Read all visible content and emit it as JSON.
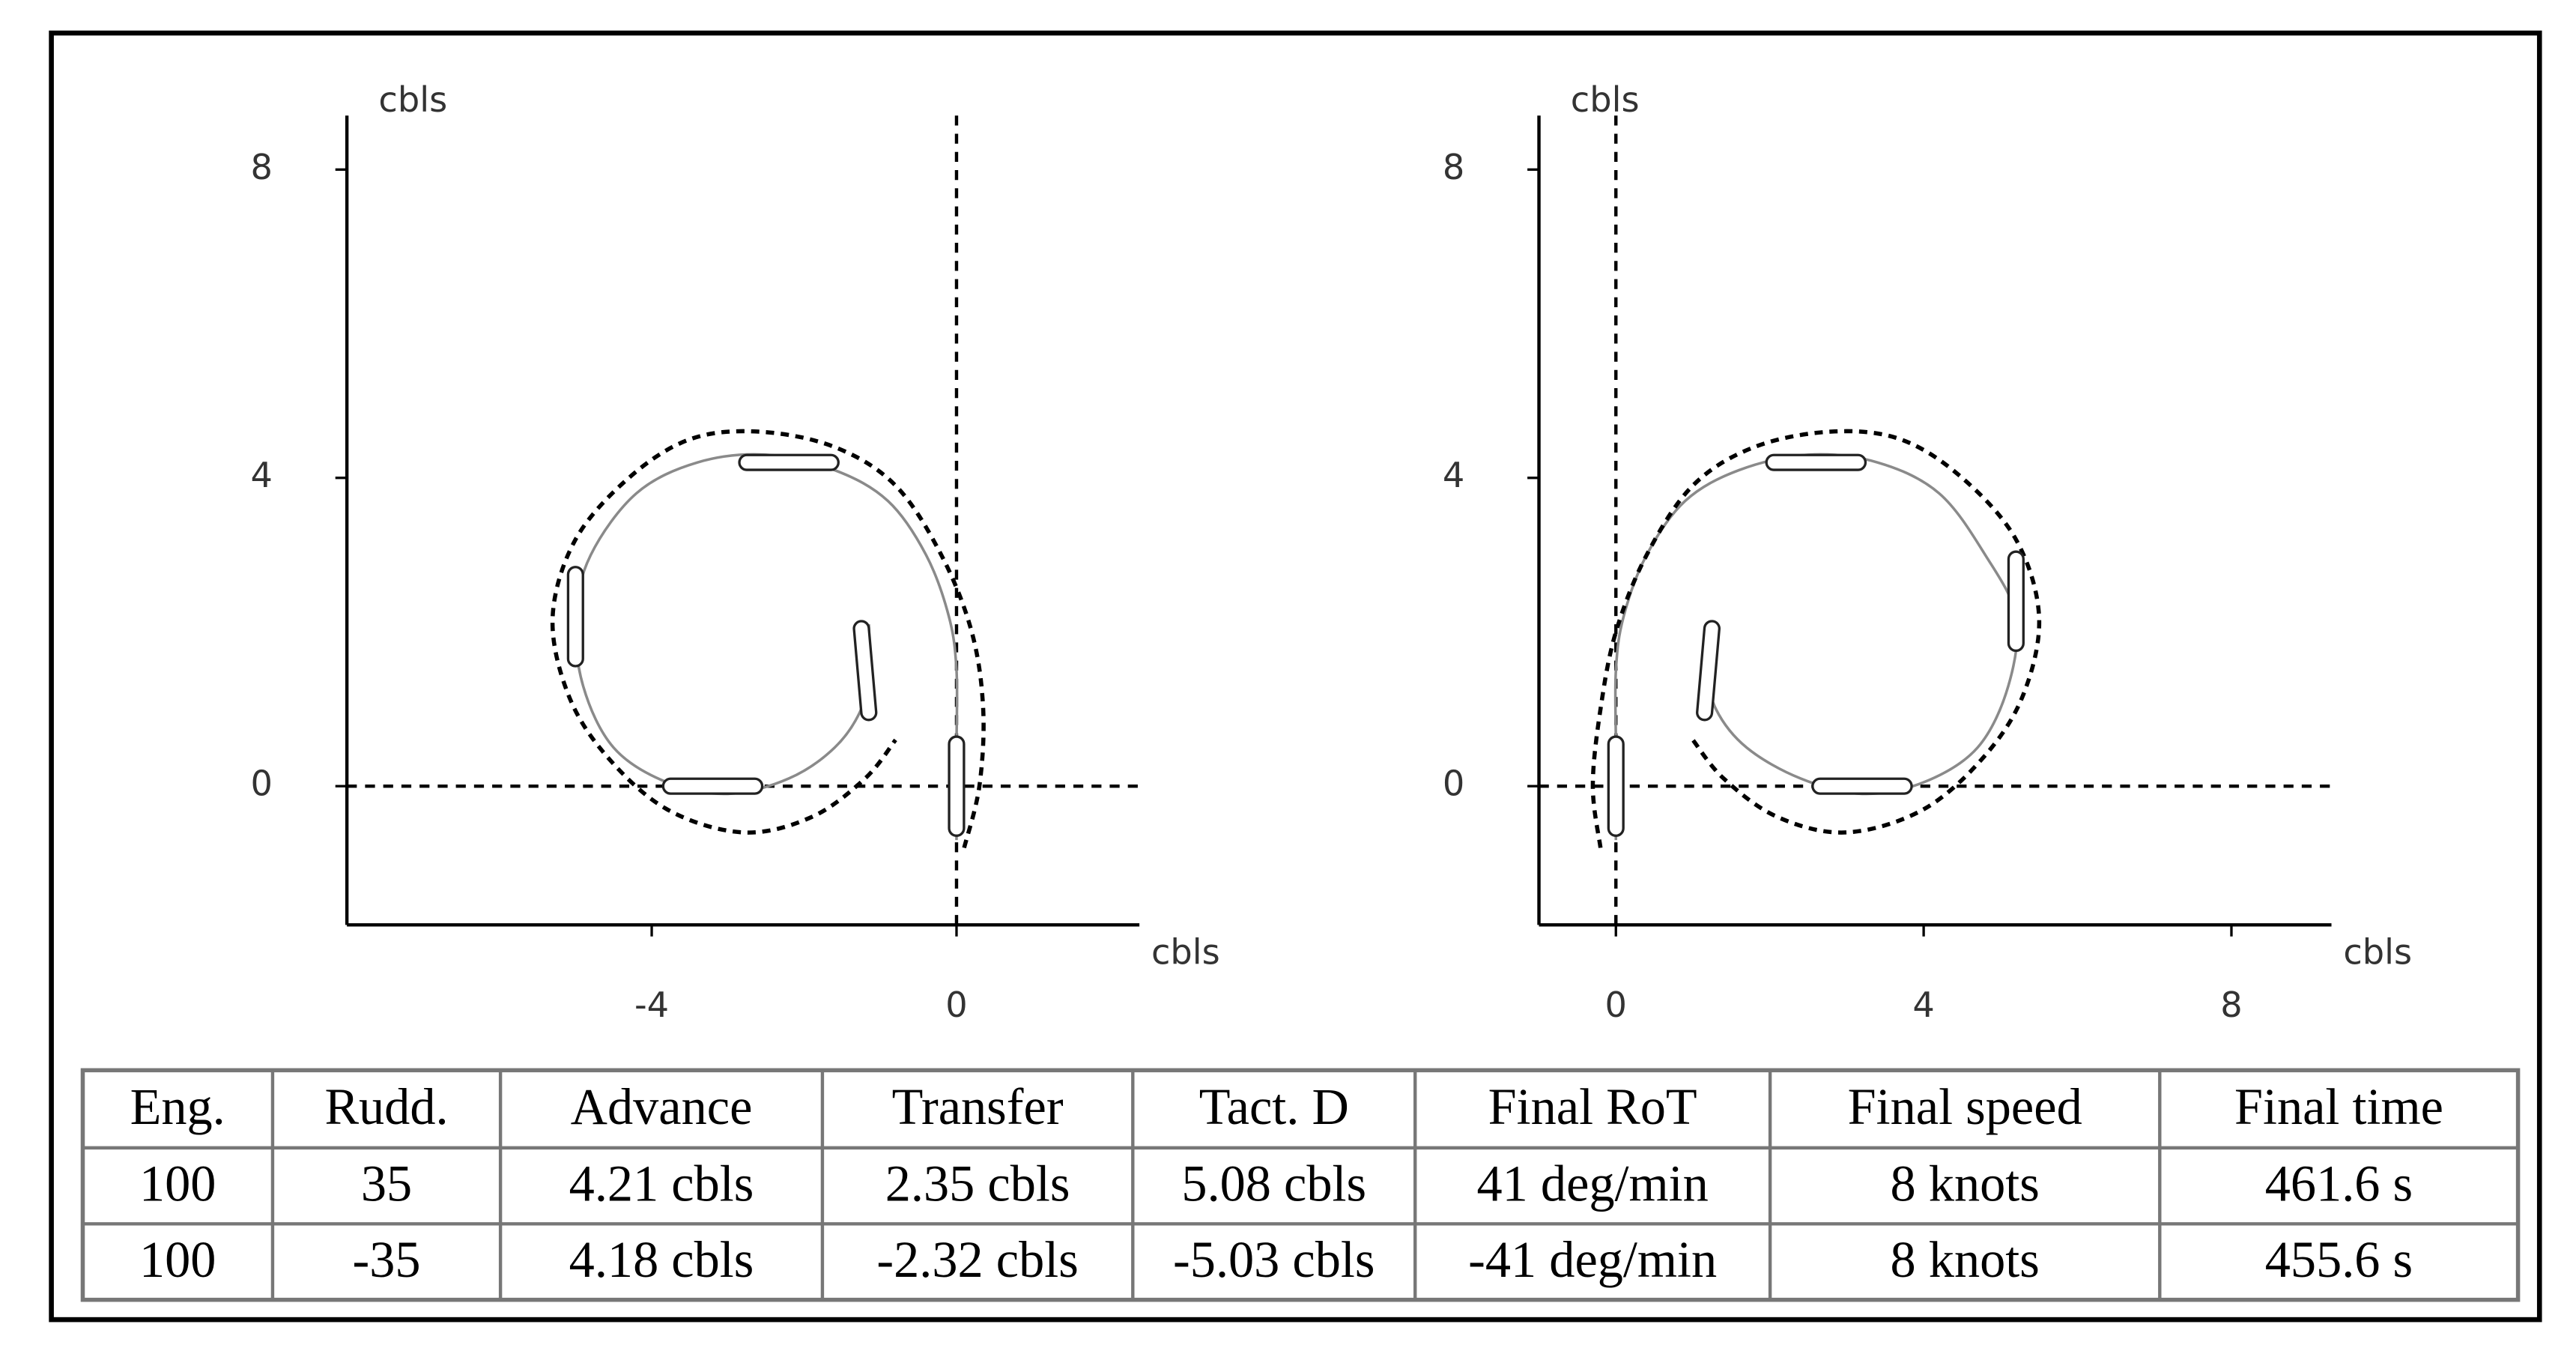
{
  "chart_data": [
    {
      "type": "line",
      "x_label": "cbls",
      "y_label": "cbls",
      "xlim": [
        -8,
        2.4
      ],
      "ylim": [
        -1.8,
        8.7
      ],
      "xticks": [
        -4,
        0
      ],
      "yticks": [
        0,
        4,
        8
      ],
      "reference_lines": {
        "x": 0,
        "y": 0
      },
      "series": [
        {
          "color": "#8a8a8a",
          "style": "solid",
          "x": [
            0,
            0,
            0,
            -0.1,
            -0.4,
            -0.9,
            -1.6,
            -2.5,
            -3.4,
            -4.2,
            -4.8,
            -5.0,
            -4.9,
            -4.5,
            -3.8,
            -3.0,
            -2.2,
            -1.6,
            -1.25,
            -1.15,
            -1.15
          ],
          "values": [
            -0.7,
            0.5,
            1.5,
            2.2,
            3.0,
            3.7,
            4.1,
            4.3,
            4.2,
            3.8,
            3.0,
            2.2,
            1.3,
            0.5,
            0.05,
            -0.1,
            0.1,
            0.5,
            1.0,
            1.5,
            2.1
          ]
        },
        {
          "color": "#000000",
          "style": "dashed",
          "x": [
            0.1,
            0.3,
            0.35,
            0.2,
            -0.2,
            -0.8,
            -1.6,
            -2.6,
            -3.5,
            -4.3,
            -5.0,
            -5.3,
            -5.1,
            -4.6,
            -3.8,
            -2.8,
            -1.9,
            -1.2,
            -0.8
          ],
          "values": [
            -0.8,
            0,
            1.0,
            2.0,
            3.0,
            3.9,
            4.4,
            4.6,
            4.5,
            4.0,
            3.2,
            2.2,
            1.2,
            0.4,
            -0.3,
            -0.6,
            -0.4,
            0.1,
            0.6
          ]
        }
      ],
      "ships": {
        "x": [
          0,
          -1.2,
          -3.2,
          -5.0,
          -2.2
        ],
        "y": [
          0,
          1.5,
          0,
          2.2,
          4.2
        ],
        "heading": [
          0,
          355,
          90,
          180,
          270
        ]
      }
    },
    {
      "type": "line",
      "x_label": "cbls",
      "y_label": "cbls",
      "xlim": [
        -1,
        9.3
      ],
      "ylim": [
        -1.8,
        8.7
      ],
      "xticks": [
        0,
        4,
        8
      ],
      "yticks": [
        0,
        4,
        8
      ],
      "reference_lines": {
        "x": 0,
        "y": 0
      },
      "series": [
        {
          "color": "#8a8a8a",
          "style": "solid",
          "x": [
            0,
            0,
            0,
            0.1,
            0.4,
            0.9,
            1.6,
            2.5,
            3.4,
            4.2,
            4.8,
            5.2,
            5.1,
            4.7,
            4.0,
            3.2,
            2.4,
            1.7,
            1.3,
            1.2,
            1.2
          ],
          "values": [
            -0.7,
            0.5,
            1.5,
            2.2,
            3.0,
            3.7,
            4.1,
            4.3,
            4.2,
            3.8,
            3.0,
            2.2,
            1.3,
            0.5,
            0.05,
            -0.1,
            0.1,
            0.5,
            1.0,
            1.5,
            2.1
          ]
        },
        {
          "color": "#000000",
          "style": "dashed",
          "x": [
            -0.2,
            -0.3,
            -0.2,
            0,
            0.4,
            1.0,
            1.8,
            2.8,
            3.7,
            4.5,
            5.2,
            5.5,
            5.3,
            4.8,
            4.0,
            3.0,
            2.1,
            1.4,
            1.0
          ],
          "values": [
            -0.8,
            0,
            1.0,
            2.0,
            3.0,
            3.9,
            4.4,
            4.6,
            4.5,
            4.0,
            3.2,
            2.2,
            1.2,
            0.4,
            -0.3,
            -0.6,
            -0.4,
            0.1,
            0.6
          ]
        }
      ],
      "ships": {
        "x": [
          0,
          1.2,
          3.2,
          5.2,
          2.6
        ],
        "y": [
          0,
          1.5,
          0,
          2.4,
          4.2
        ],
        "heading": [
          0,
          5,
          270,
          180,
          90
        ]
      }
    }
  ],
  "table": {
    "header": [
      "Eng.",
      "Rudd.",
      "Advance",
      "Transfer",
      "Tact. D",
      "Final RoT",
      "Final speed",
      "Final time"
    ],
    "rows": [
      [
        "100",
        "35",
        "4.21 cbls",
        "2.35 cbls",
        "5.08 cbls",
        "41 deg/min",
        "8 knots",
        "461.6 s"
      ],
      [
        "100",
        "-35",
        "4.18 cbls",
        "-2.32 cbls",
        "-5.03 cbls",
        "-41 deg/min",
        "8 knots",
        "455.6 s"
      ]
    ]
  }
}
